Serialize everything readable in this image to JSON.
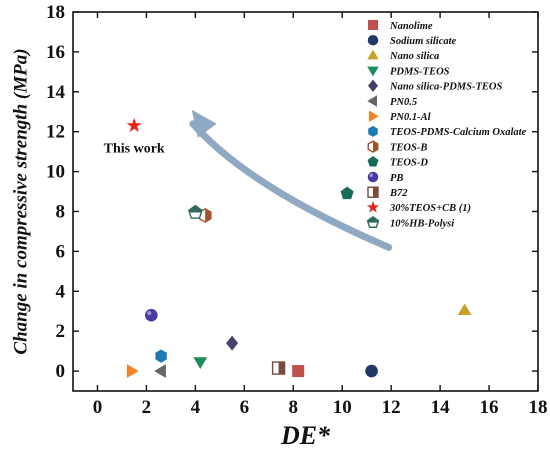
{
  "chart_data": {
    "type": "scatter",
    "xlabel": "DE*",
    "ylabel": "Change in compressive strength (MPa)",
    "xlim": [
      -1,
      18
    ],
    "ylim": [
      -1,
      18
    ],
    "xticks": [
      0,
      2,
      4,
      6,
      8,
      10,
      12,
      14,
      16,
      18
    ],
    "yticks": [
      0,
      2,
      4,
      6,
      8,
      10,
      12,
      14,
      16,
      18
    ],
    "grid": false,
    "legend_position": "top-right",
    "annotation": {
      "text": "This work",
      "x": 1.5,
      "y": 11.2
    },
    "series": [
      {
        "name": "Nanolime",
        "marker": "square",
        "color": "#c0504d",
        "points": [
          [
            8.2,
            0.0
          ]
        ]
      },
      {
        "name": "Sodium silicate",
        "marker": "circle",
        "color": "#1f3864",
        "points": [
          [
            11.2,
            0.0
          ]
        ]
      },
      {
        "name": "Nano silica",
        "marker": "triangle-up",
        "color": "#c9a227",
        "points": [
          [
            15.0,
            3.05
          ]
        ]
      },
      {
        "name": "PDMS-TEOS",
        "marker": "triangle-down",
        "color": "#1e8c5a",
        "points": [
          [
            4.2,
            0.45
          ]
        ]
      },
      {
        "name": "Nano silica-PDMS-TEOS",
        "marker": "diamond",
        "color": "#4a3f6b",
        "points": [
          [
            5.5,
            1.4
          ]
        ]
      },
      {
        "name": "PN0.5",
        "marker": "triangle-left",
        "color": "#666666",
        "points": [
          [
            2.6,
            0.0
          ]
        ]
      },
      {
        "name": "PN0.1-Al",
        "marker": "triangle-right",
        "color": "#f58220",
        "points": [
          [
            1.4,
            0.0
          ]
        ]
      },
      {
        "name": "TEOS-PDMS-Calcium Oxalate",
        "marker": "hexagon",
        "color": "#1f77b4",
        "points": [
          [
            2.6,
            0.75
          ]
        ]
      },
      {
        "name": "TEOS-B",
        "marker": "hexagon-half",
        "color": "#a0522d",
        "points": [
          [
            4.4,
            7.8
          ]
        ]
      },
      {
        "name": "TEOS-D",
        "marker": "pentagon",
        "color": "#1b6b5c",
        "points": [
          [
            10.2,
            8.9
          ]
        ]
      },
      {
        "name": "PB",
        "marker": "sphere",
        "color": "#4b3aa6",
        "points": [
          [
            2.2,
            2.8
          ]
        ]
      },
      {
        "name": "B72",
        "marker": "square-half",
        "color": "#7a4a3a",
        "points": [
          [
            7.4,
            0.15
          ]
        ]
      },
      {
        "name": "30%TEOS+CB (1)",
        "marker": "star",
        "color": "#e8201a",
        "points": [
          [
            1.5,
            12.3
          ]
        ]
      },
      {
        "name": "10%HB-Polysi",
        "marker": "pentagon-half",
        "color": "#2e6b5e",
        "points": [
          [
            4.0,
            7.95
          ]
        ]
      }
    ]
  }
}
